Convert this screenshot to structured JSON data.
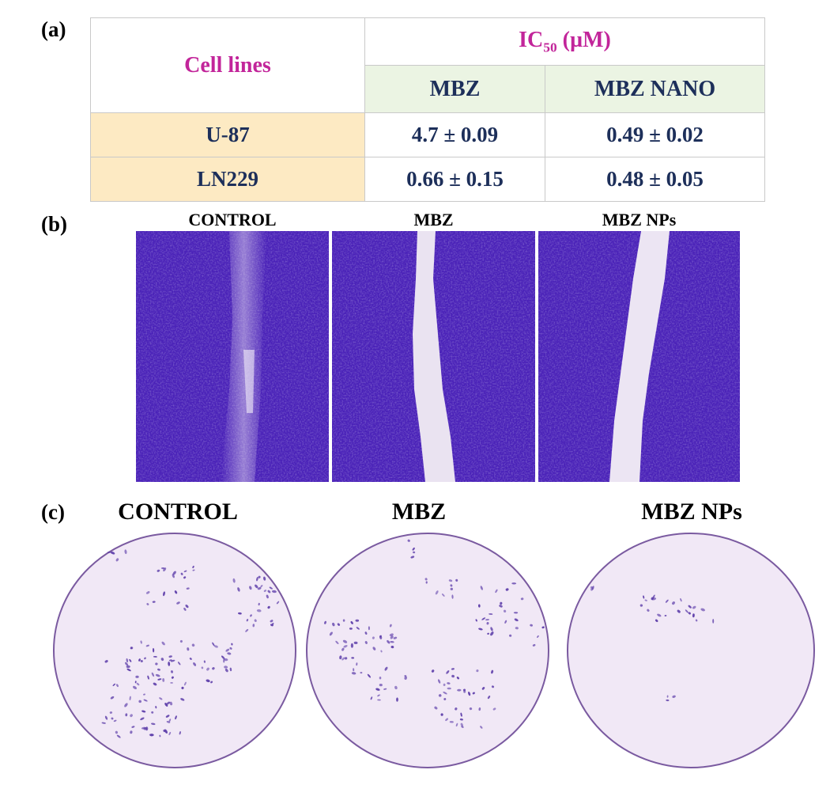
{
  "panels": {
    "a": "(a)",
    "b": "(b)",
    "c": "(c)"
  },
  "table": {
    "cell_lines_header": "Cell lines",
    "ic50_label": "IC",
    "ic50_subscript": "50",
    "ic50_unit": " (µM)",
    "col_headers": [
      "MBZ",
      "MBZ NANO"
    ],
    "rows": [
      {
        "cell_line": "U-87",
        "values": [
          "4.7 ± 0.09",
          "0.49 ± 0.02"
        ]
      },
      {
        "cell_line": "LN229",
        "values": [
          "0.66 ± 0.15",
          "0.48 ± 0.05"
        ]
      }
    ]
  },
  "wound_healing": {
    "titles": [
      "CONTROL",
      "MBZ",
      "MBZ NPs"
    ]
  },
  "transwell": {
    "titles": [
      "CONTROL",
      "MBZ",
      "MBZ NPs"
    ]
  },
  "colors": {
    "stain_dark": "#4a22b8",
    "stain_mid": "#6b3fd6",
    "gap": "#e9e1f2",
    "dish_bg": "#f1e8f6",
    "dish_border": "#7a5aa0",
    "cell": "#5a3aa8"
  }
}
